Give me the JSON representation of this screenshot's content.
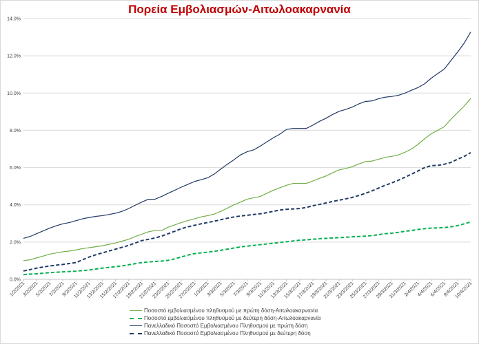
{
  "chart_data": {
    "type": "line",
    "title": "Πορεία Εμβολιασμών-Αιτωλοακαρνανία",
    "xlabel": "",
    "ylabel": "",
    "ylim": [
      0,
      14
    ],
    "y_ticks": [
      "0.0%",
      "2.0%",
      "4.0%",
      "6.0%",
      "8.0%",
      "10.0%",
      "12.0%",
      "14.0%"
    ],
    "grid": true,
    "legend_position": "bottom",
    "x": [
      "1/2/2021",
      "2/2/2021",
      "3/2/2021",
      "4/2/2021",
      "5/2/2021",
      "6/2/2021",
      "7/2/2021",
      "8/2/2021",
      "9/2/2021",
      "10/2/2021",
      "11/2/2021",
      "12/2/2021",
      "13/2/2021",
      "14/2/2021",
      "15/2/2021",
      "16/2/2021",
      "17/2/2021",
      "18/2/2021",
      "19/2/2021",
      "20/2/2021",
      "21/2/2021",
      "22/2/2021",
      "23/2/2021",
      "24/2/2021",
      "25/2/2021",
      "26/2/2021",
      "27/2/2021",
      "28/2/2021",
      "1/3/2021",
      "2/3/2021",
      "3/3/2021",
      "4/3/2021",
      "5/3/2021",
      "6/3/2021",
      "7/3/2021",
      "8/3/2021",
      "9/3/2021",
      "10/3/2021",
      "11/3/2021",
      "12/3/2021",
      "13/3/2021",
      "14/3/2021",
      "15/3/2021",
      "16/3/2021",
      "17/3/2021",
      "18/3/2021",
      "19/3/2021",
      "20/3/2021",
      "21/3/2021",
      "22/3/2021",
      "23/3/2021",
      "24/3/2021",
      "25/3/2021",
      "26/3/2021",
      "27/3/2021",
      "28/3/2021",
      "29/3/2021",
      "30/3/2021",
      "31/3/2021",
      "1/4/2021",
      "2/4/2021",
      "3/4/2021",
      "4/4/2021",
      "5/4/2021",
      "6/4/2021",
      "7/4/2021",
      "8/4/2021",
      "9/4/2021",
      "10/4/2021"
    ],
    "x_tick_labels": [
      "1/2/2021",
      "3/2/2021",
      "5/2/2021",
      "7/2/2021",
      "9/2/2021",
      "11/2/2021",
      "13/2/2021",
      "15/2/2021",
      "17/2/2021",
      "19/2/2021",
      "21/2/2021",
      "23/2/2021",
      "25/2/2021",
      "27/2/2021",
      "1/3/2021",
      "3/3/2021",
      "5/3/2021",
      "7/3/2021",
      "9/3/2021",
      "11/3/2021",
      "13/3/2021",
      "15/3/2021",
      "17/3/2021",
      "19/3/2021",
      "21/3/2021",
      "23/3/2021",
      "25/3/2021",
      "27/3/2021",
      "29/3/2021",
      "31/3/2021",
      "2/4/2021",
      "4/4/2021",
      "6/4/2021",
      "8/4/2021",
      "10/4/2021"
    ],
    "series": [
      {
        "name": "Ποσοστό εμβολιασμένου πληθυσμού με πρώτη δόση-Αιτωλοακαρνανία",
        "color": "#70ad47",
        "dash": "solid",
        "values": [
          1.0,
          1.05,
          1.15,
          1.25,
          1.35,
          1.42,
          1.48,
          1.52,
          1.58,
          1.65,
          1.7,
          1.75,
          1.8,
          1.88,
          1.95,
          2.05,
          2.15,
          2.3,
          2.42,
          2.55,
          2.62,
          2.62,
          2.8,
          2.92,
          3.05,
          3.15,
          3.25,
          3.35,
          3.42,
          3.5,
          3.65,
          3.82,
          4.0,
          4.15,
          4.3,
          4.38,
          4.45,
          4.62,
          4.78,
          4.92,
          5.05,
          5.15,
          5.15,
          5.15,
          5.28,
          5.42,
          5.55,
          5.72,
          5.88,
          5.95,
          6.05,
          6.2,
          6.32,
          6.35,
          6.45,
          6.55,
          6.6,
          6.68,
          6.82,
          7.0,
          7.25,
          7.55,
          7.82,
          8.0,
          8.2,
          8.6,
          8.95,
          9.3,
          9.72
        ]
      },
      {
        "name": "Ποσοστό εμβολιασμένου πληθυσμού με δεύτερη δόση-Αιτωλοακαρνανία",
        "color": "#00b050",
        "dash": "dashed",
        "values": [
          0.25,
          0.28,
          0.3,
          0.33,
          0.36,
          0.38,
          0.4,
          0.42,
          0.44,
          0.47,
          0.5,
          0.55,
          0.6,
          0.64,
          0.68,
          0.72,
          0.78,
          0.84,
          0.9,
          0.93,
          0.96,
          0.98,
          1.02,
          1.1,
          1.2,
          1.3,
          1.38,
          1.42,
          1.46,
          1.5,
          1.56,
          1.62,
          1.68,
          1.74,
          1.78,
          1.82,
          1.86,
          1.9,
          1.94,
          1.98,
          2.02,
          2.06,
          2.1,
          2.12,
          2.15,
          2.18,
          2.2,
          2.22,
          2.24,
          2.26,
          2.28,
          2.3,
          2.32,
          2.35,
          2.4,
          2.45,
          2.48,
          2.52,
          2.58,
          2.62,
          2.68,
          2.72,
          2.75,
          2.76,
          2.78,
          2.82,
          2.88,
          2.98,
          3.08
        ]
      },
      {
        "name": "Πανελλαδικό Ποσοστό Εμβολιασμένου Πληθυσμού με πρώτη δόση",
        "color": "#203864",
        "dash": "solid",
        "values": [
          2.2,
          2.3,
          2.45,
          2.6,
          2.75,
          2.88,
          2.98,
          3.05,
          3.15,
          3.25,
          3.32,
          3.38,
          3.42,
          3.48,
          3.55,
          3.65,
          3.8,
          3.98,
          4.15,
          4.3,
          4.3,
          4.45,
          4.62,
          4.78,
          4.95,
          5.1,
          5.25,
          5.35,
          5.45,
          5.65,
          5.92,
          6.18,
          6.42,
          6.68,
          6.85,
          6.95,
          7.15,
          7.38,
          7.6,
          7.8,
          8.05,
          8.1,
          8.1,
          8.1,
          8.28,
          8.48,
          8.65,
          8.85,
          9.02,
          9.12,
          9.25,
          9.42,
          9.55,
          9.58,
          9.7,
          9.78,
          9.82,
          9.88,
          10.0,
          10.15,
          10.3,
          10.5,
          10.8,
          11.05,
          11.3,
          11.75,
          12.2,
          12.68,
          13.28
        ]
      },
      {
        "name": "Πανελλαδικό Ποσοστό Εμβολιασμένου Πληθυσμού με δεύτερη δόση",
        "color": "#203864",
        "dash": "dashed",
        "values": [
          0.45,
          0.52,
          0.6,
          0.66,
          0.72,
          0.76,
          0.8,
          0.85,
          0.9,
          1.05,
          1.2,
          1.32,
          1.42,
          1.52,
          1.62,
          1.72,
          1.82,
          1.95,
          2.08,
          2.15,
          2.22,
          2.32,
          2.45,
          2.58,
          2.72,
          2.82,
          2.9,
          2.98,
          3.05,
          3.12,
          3.2,
          3.28,
          3.35,
          3.4,
          3.44,
          3.48,
          3.52,
          3.58,
          3.65,
          3.72,
          3.76,
          3.78,
          3.8,
          3.86,
          3.95,
          4.02,
          4.1,
          4.18,
          4.25,
          4.32,
          4.4,
          4.5,
          4.62,
          4.75,
          4.9,
          5.05,
          5.18,
          5.32,
          5.48,
          5.65,
          5.82,
          6.0,
          6.1,
          6.12,
          6.18,
          6.28,
          6.45,
          6.6,
          6.8
        ]
      }
    ]
  }
}
